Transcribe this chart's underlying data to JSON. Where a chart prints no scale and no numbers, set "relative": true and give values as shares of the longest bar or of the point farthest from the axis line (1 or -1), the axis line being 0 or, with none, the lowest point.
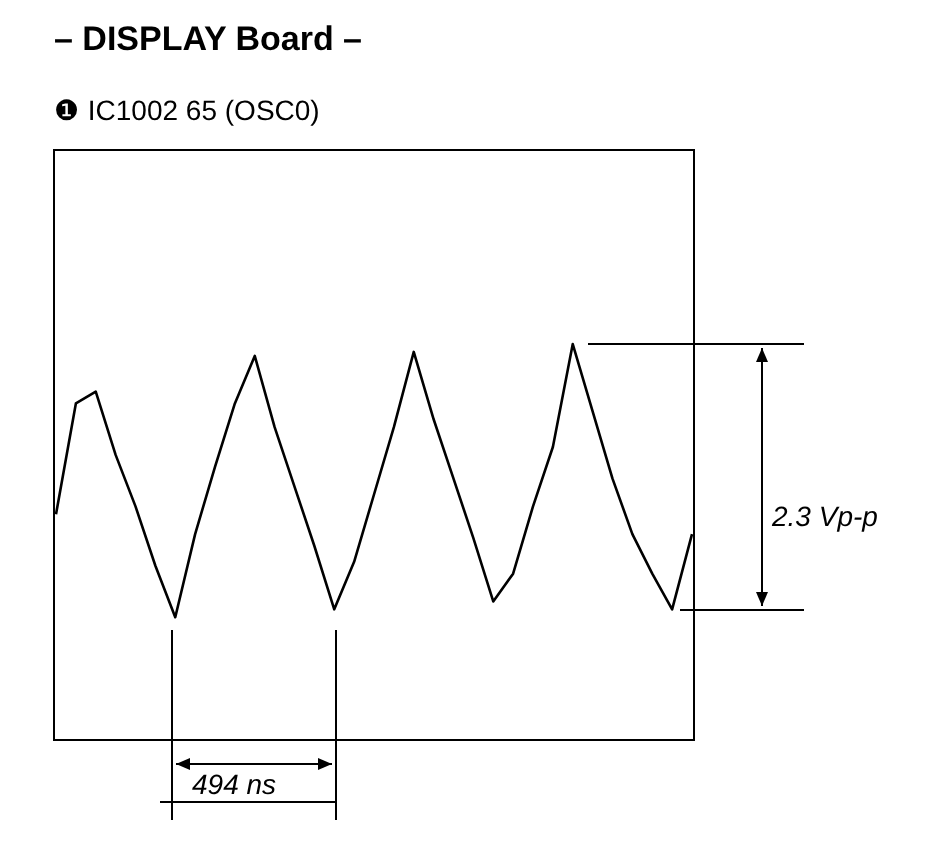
{
  "chart_data": {
    "type": "line",
    "title": "– DISPLAY Board –",
    "subtitle": "❶ IC1002 65 (OSC0)",
    "categories": [
      null,
      null,
      null,
      null,
      null,
      null,
      null,
      null,
      null,
      null,
      null,
      null,
      null,
      null,
      null,
      null,
      null,
      null,
      null,
      null,
      null,
      null,
      null,
      null,
      null,
      null,
      null,
      null,
      null,
      null,
      null,
      null,
      null
    ],
    "series": [
      {
        "color": "#000000",
        "values": [
          0.57,
          0.85,
          0.88,
          0.72,
          0.59,
          0.44,
          0.31,
          0.52,
          0.69,
          0.85,
          0.97,
          0.79,
          0.64,
          0.49,
          0.33,
          0.45,
          0.62,
          0.79,
          0.98,
          0.81,
          0.66,
          0.51,
          0.35,
          0.42,
          0.59,
          0.74,
          1,
          0.83,
          0.66,
          0.52,
          0.42,
          0.33,
          0.52
        ]
      }
    ],
    "relative": true,
    "marker": "none",
    "line_style": "solid",
    "grid": false,
    "legend": false,
    "annotations": [
      "2.3 Vp-p",
      "494 ns"
    ]
  }
}
